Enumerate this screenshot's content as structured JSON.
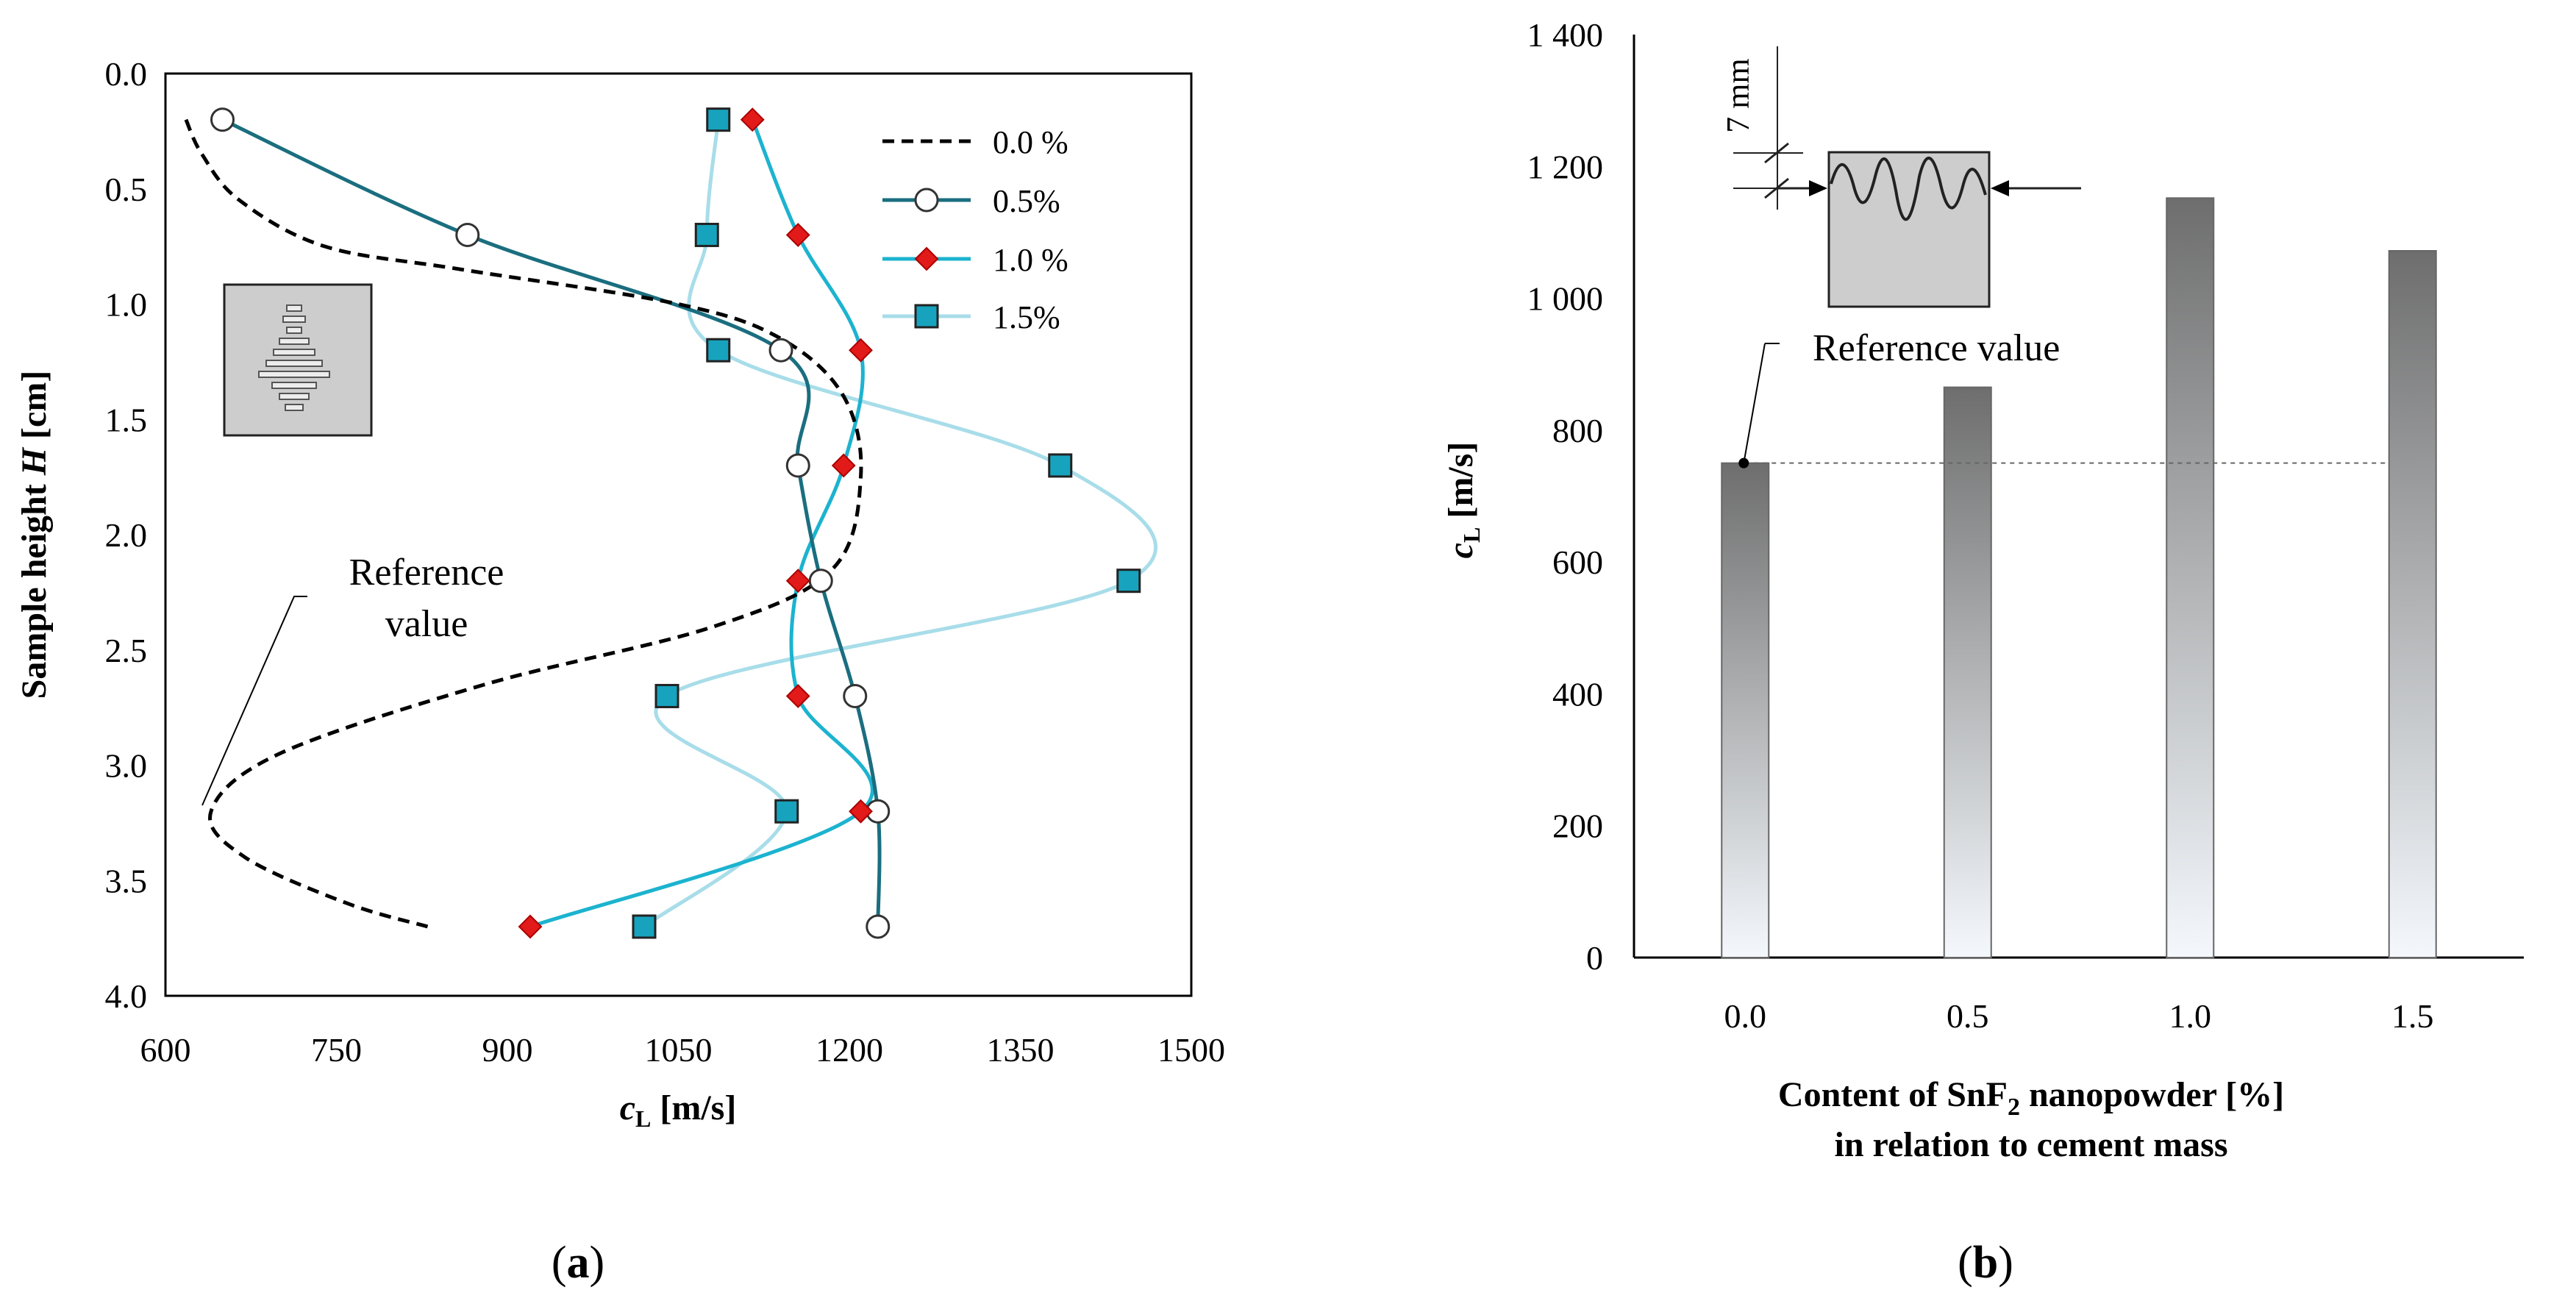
{
  "chart_data": [
    {
      "type": "line",
      "panel_label_open": "(",
      "panel_label_letter": "a",
      "panel_label_close": ")",
      "xlabel_main": "c",
      "xlabel_sub": "L",
      "xlabel_units": " [m/s]",
      "ylabel_main": "Sample height ",
      "ylabel_var": "H",
      "ylabel_units": " [cm]",
      "xlim": [
        600,
        1500
      ],
      "ylim": [
        0.0,
        4.0
      ],
      "y_inverted": true,
      "x_ticks": [
        "600",
        "750",
        "900",
        "1050",
        "1200",
        "1350",
        "1500"
      ],
      "y_ticks": [
        "0.0",
        "0.5",
        "1.0",
        "1.5",
        "2.0",
        "2.5",
        "3.0",
        "3.5",
        "4.0"
      ],
      "annotation": {
        "line1": "Reference",
        "line2": "value"
      },
      "legend_position": "top-right",
      "series": [
        {
          "name": "0.0 %",
          "style": "dashed",
          "color": "#000000",
          "marker": "none",
          "x": [
            618,
            632,
            665,
            740,
            860,
            1050,
            1140,
            1195,
            1210,
            1185,
            1080,
            880,
            700,
            640,
            670,
            760,
            830
          ],
          "y": [
            0.2,
            0.35,
            0.55,
            0.75,
            0.85,
            1.0,
            1.15,
            1.4,
            1.75,
            2.15,
            2.4,
            2.65,
            2.95,
            3.2,
            3.4,
            3.6,
            3.7
          ]
        },
        {
          "name": "0.5%",
          "style": "solid",
          "color": "#1a6e7f",
          "marker": "circle",
          "x": [
            650,
            865,
            1140,
            1155,
            1175,
            1205,
            1225,
            1225
          ],
          "y": [
            0.2,
            0.7,
            1.2,
            1.7,
            2.2,
            2.7,
            3.2,
            3.7
          ]
        },
        {
          "name": "1.0 %",
          "style": "solid",
          "color": "#1cb3cf",
          "marker": "diamond",
          "x": [
            1115,
            1155,
            1210,
            1195,
            1155,
            1155,
            1210,
            920
          ],
          "y": [
            0.2,
            0.7,
            1.2,
            1.7,
            2.2,
            2.7,
            3.2,
            3.7
          ]
        },
        {
          "name": "1.5%",
          "style": "solid",
          "color": "#a8dde9",
          "marker": "square",
          "x": [
            1085,
            1075,
            1085,
            1385,
            1445,
            1040,
            1145,
            1020
          ],
          "y": [
            0.2,
            0.7,
            1.2,
            1.7,
            2.2,
            2.7,
            3.2,
            3.7
          ]
        }
      ]
    },
    {
      "type": "bar",
      "panel_label_open": "(",
      "panel_label_letter": "b",
      "panel_label_close": ")",
      "categories": [
        "0.0",
        "0.5",
        "1.0",
        "1.5"
      ],
      "values": [
        750,
        865,
        1152,
        1072
      ],
      "ylim": [
        0,
        1400
      ],
      "y_ticks": [
        "0",
        "200",
        "400",
        "600",
        "800",
        "1 000",
        "1 200",
        "1 400"
      ],
      "ylabel_main": "c",
      "ylabel_sub": "L",
      "ylabel_units": " [m/s]",
      "xlabel_line1_pre": "Content of SnF",
      "xlabel_line1_sub": "2",
      "xlabel_line1_post": " nanopowder [%]",
      "xlabel_line2": "in relation to cement mass",
      "reference_value": 750,
      "reference_label": "Reference value",
      "inset_dimension_label": "7 mm"
    }
  ]
}
